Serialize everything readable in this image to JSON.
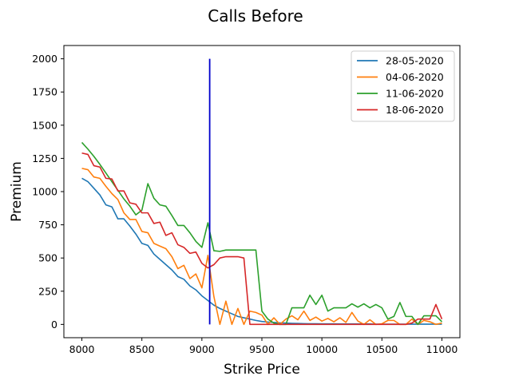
{
  "chart_data": {
    "type": "line",
    "title": "Calls Before",
    "xlabel": "Strike Price",
    "ylabel": "Premium",
    "xlim": [
      7850,
      11150
    ],
    "ylim": [
      -100,
      2100
    ],
    "xticks": [
      8000,
      8500,
      9000,
      9500,
      10000,
      10500,
      11000
    ],
    "yticks": [
      0,
      250,
      500,
      750,
      1000,
      1250,
      1500,
      1750,
      2000
    ],
    "legend_position": "top-right",
    "grid": false,
    "vline": {
      "x": 9065,
      "y_from": 0,
      "y_to": 2000,
      "color": "#0000cc"
    },
    "series": [
      {
        "name": "28-05-2020",
        "color": "#1f77b4",
        "x": [
          8000,
          8050,
          8100,
          8150,
          8200,
          8250,
          8300,
          8350,
          8400,
          8450,
          8500,
          8550,
          8600,
          8650,
          8700,
          8750,
          8800,
          8850,
          8900,
          8950,
          9000,
          9050,
          9100,
          9150,
          9200,
          9250,
          9300,
          9350,
          9400,
          9450,
          9500,
          9550,
          9600,
          9650,
          9700,
          9750,
          9800,
          9850,
          9900,
          9950,
          10000,
          10050,
          10100,
          10150,
          10200,
          10250,
          10300,
          10350,
          10400,
          10450,
          10500,
          10550,
          10600,
          10650,
          10700,
          10750,
          10800,
          10850,
          10900,
          10950,
          11000
        ],
        "values": [
          1100,
          1075,
          1025,
          975,
          900,
          885,
          795,
          795,
          740,
          680,
          610,
          595,
          530,
          490,
          450,
          410,
          360,
          340,
          290,
          260,
          215,
          180,
          145,
          120,
          100,
          80,
          60,
          50,
          40,
          30,
          22,
          18,
          15,
          12,
          10,
          8,
          7,
          6,
          5,
          5,
          4,
          4,
          4,
          3,
          3,
          3,
          3,
          3,
          3,
          2,
          2,
          2,
          2,
          2,
          2,
          2,
          2,
          2,
          2,
          2,
          2
        ]
      },
      {
        "name": "04-06-2020",
        "color": "#ff7f0e",
        "x": [
          8000,
          8050,
          8100,
          8150,
          8200,
          8250,
          8300,
          8350,
          8400,
          8450,
          8500,
          8550,
          8600,
          8650,
          8700,
          8750,
          8800,
          8850,
          8900,
          8950,
          9000,
          9050,
          9100,
          9150,
          9200,
          9250,
          9300,
          9350,
          9400,
          9450,
          9500,
          9550,
          9600,
          9650,
          9700,
          9750,
          9800,
          9850,
          9900,
          9950,
          10000,
          10050,
          10100,
          10150,
          10200,
          10250,
          10300,
          10350,
          10400,
          10450,
          10500,
          10550,
          10600,
          10650,
          10700,
          10750,
          10800,
          10850,
          10900,
          10950,
          11000
        ],
        "values": [
          1175,
          1165,
          1110,
          1100,
          1040,
          985,
          940,
          840,
          790,
          790,
          700,
          690,
          610,
          590,
          570,
          510,
          420,
          445,
          345,
          380,
          275,
          520,
          210,
          0,
          175,
          0,
          120,
          0,
          100,
          90,
          70,
          0,
          50,
          0,
          40,
          65,
          35,
          100,
          30,
          55,
          25,
          45,
          20,
          50,
          15,
          90,
          25,
          0,
          35,
          0,
          5,
          30,
          30,
          0,
          0,
          40,
          0,
          30,
          20,
          0,
          10
        ]
      },
      {
        "name": "11-06-2020",
        "color": "#2ca02c",
        "x": [
          8000,
          8050,
          8100,
          8150,
          8200,
          8250,
          8300,
          8350,
          8400,
          8450,
          8500,
          8550,
          8600,
          8650,
          8700,
          8750,
          8800,
          8850,
          8900,
          8950,
          9000,
          9050,
          9100,
          9150,
          9200,
          9250,
          9300,
          9350,
          9400,
          9450,
          9500,
          9550,
          9600,
          9650,
          9700,
          9750,
          9800,
          9850,
          9900,
          9950,
          10000,
          10050,
          10100,
          10150,
          10200,
          10250,
          10300,
          10350,
          10400,
          10450,
          10500,
          10550,
          10600,
          10650,
          10700,
          10750,
          10800,
          10850,
          10900,
          10950,
          11000
        ],
        "values": [
          1370,
          1320,
          1265,
          1205,
          1140,
          1075,
          1010,
          945,
          890,
          825,
          860,
          1060,
          950,
          900,
          890,
          820,
          745,
          745,
          690,
          625,
          580,
          765,
          555,
          550,
          560,
          560,
          560,
          560,
          560,
          560,
          100,
          40,
          10,
          0,
          0,
          125,
          125,
          125,
          220,
          150,
          220,
          100,
          125,
          125,
          125,
          155,
          130,
          155,
          125,
          150,
          125,
          40,
          60,
          165,
          60,
          60,
          0,
          65,
          65,
          65,
          20
        ]
      },
      {
        "name": "18-06-2020",
        "color": "#d62728",
        "x": [
          8000,
          8050,
          8100,
          8150,
          8200,
          8250,
          8300,
          8350,
          8400,
          8450,
          8500,
          8550,
          8600,
          8650,
          8700,
          8750,
          8800,
          8850,
          8900,
          8950,
          9000,
          9050,
          9100,
          9150,
          9200,
          9250,
          9300,
          9350,
          9400,
          9450,
          9500,
          9550,
          9600,
          9650,
          9700,
          9750,
          9800,
          9850,
          9900,
          9950,
          10000,
          10050,
          10100,
          10150,
          10200,
          10250,
          10300,
          10350,
          10400,
          10450,
          10500,
          10550,
          10600,
          10650,
          10700,
          10750,
          10800,
          10850,
          10900,
          10950,
          11000
        ],
        "values": [
          1290,
          1280,
          1195,
          1185,
          1100,
          1095,
          1005,
          1005,
          915,
          905,
          840,
          840,
          760,
          770,
          670,
          690,
          600,
          580,
          535,
          545,
          460,
          425,
          450,
          500,
          510,
          510,
          510,
          500,
          0,
          0,
          0,
          0,
          0,
          0,
          0,
          0,
          0,
          0,
          0,
          0,
          0,
          0,
          0,
          0,
          0,
          0,
          0,
          0,
          0,
          0,
          0,
          0,
          0,
          0,
          0,
          10,
          40,
          40,
          40,
          150,
          40
        ]
      }
    ]
  }
}
